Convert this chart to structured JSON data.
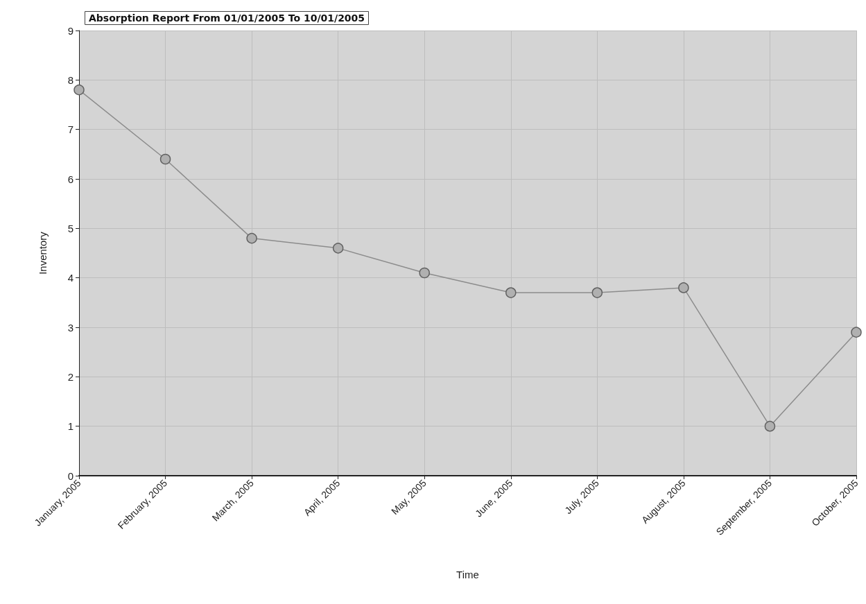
{
  "chart_data": {
    "type": "line",
    "title": "Absorption Report From 01/01/2005 To 10/01/2005",
    "xlabel": "Time",
    "ylabel": "Inventory",
    "categories": [
      "January, 2005",
      "February, 2005",
      "March, 2005",
      "April, 2005",
      "May, 2005",
      "June, 2005",
      "July, 2005",
      "August, 2005",
      "September, 2005",
      "October, 2005"
    ],
    "series": [
      {
        "color": "#8c8c8c",
        "values": [
          7.8,
          6.4,
          4.8,
          4.6,
          4.1,
          3.7,
          3.7,
          3.8,
          1.0,
          2.9
        ]
      }
    ],
    "ylim": [
      0,
      9
    ],
    "yticks": [
      0,
      1,
      2,
      3,
      4,
      5,
      6,
      7,
      8,
      9
    ],
    "grid": true,
    "marker": "circle",
    "line_style": "solid"
  }
}
